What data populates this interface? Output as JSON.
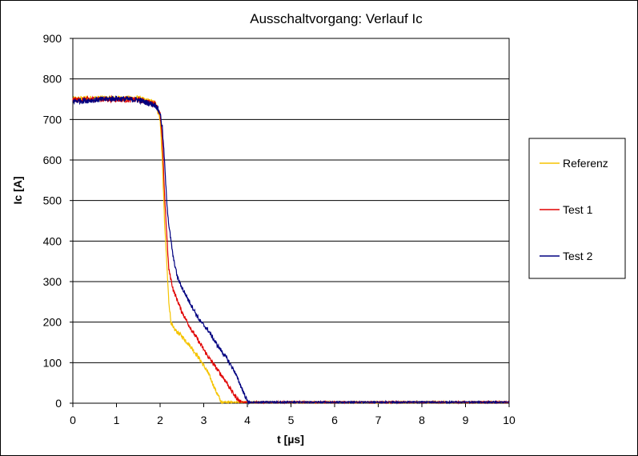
{
  "chart_data": {
    "type": "line",
    "title": "Ausschaltvorgang: Verlauf Ic",
    "xlabel": "t [µs]",
    "ylabel": "Ic [A]",
    "xlim": [
      0,
      10
    ],
    "ylim": [
      0,
      900
    ],
    "xticks": [
      "0",
      "1",
      "2",
      "3",
      "4",
      "5",
      "6",
      "7",
      "8",
      "9",
      "10"
    ],
    "yticks": [
      "0",
      "100",
      "200",
      "300",
      "400",
      "500",
      "600",
      "700",
      "800",
      "900"
    ],
    "grid": "horizontal",
    "legend_position": "right",
    "series": [
      {
        "name": "Referenz",
        "color": "#f5c400",
        "x": [
          0,
          0.5,
          1,
          1.5,
          1.9,
          2.0,
          2.05,
          2.1,
          2.15,
          2.2,
          2.25,
          2.3,
          2.5,
          2.7,
          2.9,
          3.1,
          3.3,
          3.4,
          3.45,
          4,
          5,
          6,
          7,
          8,
          9,
          10
        ],
        "y": [
          750,
          752,
          752,
          752,
          740,
          700,
          600,
          450,
          350,
          250,
          200,
          185,
          165,
          140,
          110,
          75,
          25,
          3,
          0,
          0,
          0,
          0,
          0,
          0,
          0,
          0
        ]
      },
      {
        "name": "Test 1",
        "color": "#e00000",
        "x": [
          0,
          0.5,
          1,
          1.5,
          1.9,
          2.0,
          2.05,
          2.1,
          2.15,
          2.2,
          2.3,
          2.5,
          2.7,
          2.9,
          3.1,
          3.3,
          3.5,
          3.7,
          3.85,
          3.95,
          4.5,
          5,
          6,
          7,
          8,
          9,
          10
        ],
        "y": [
          748,
          750,
          750,
          748,
          738,
          712,
          650,
          520,
          420,
          330,
          280,
          225,
          185,
          150,
          115,
          85,
          55,
          20,
          2,
          0,
          0,
          0,
          0,
          0,
          0,
          0,
          0
        ]
      },
      {
        "name": "Test 2",
        "color": "#000080",
        "x": [
          0,
          0.5,
          1,
          1.5,
          1.9,
          2.0,
          2.05,
          2.1,
          2.15,
          2.2,
          2.25,
          2.3,
          2.4,
          2.5,
          2.7,
          2.9,
          3.1,
          3.3,
          3.5,
          3.7,
          3.9,
          4.0,
          4.05,
          4.5,
          5,
          6,
          7,
          8,
          9,
          10
        ],
        "y": [
          745,
          748,
          752,
          748,
          735,
          715,
          680,
          600,
          500,
          440,
          400,
          360,
          310,
          285,
          245,
          205,
          180,
          145,
          115,
          80,
          30,
          5,
          0,
          0,
          0,
          0,
          0,
          0,
          0,
          0
        ]
      }
    ]
  }
}
